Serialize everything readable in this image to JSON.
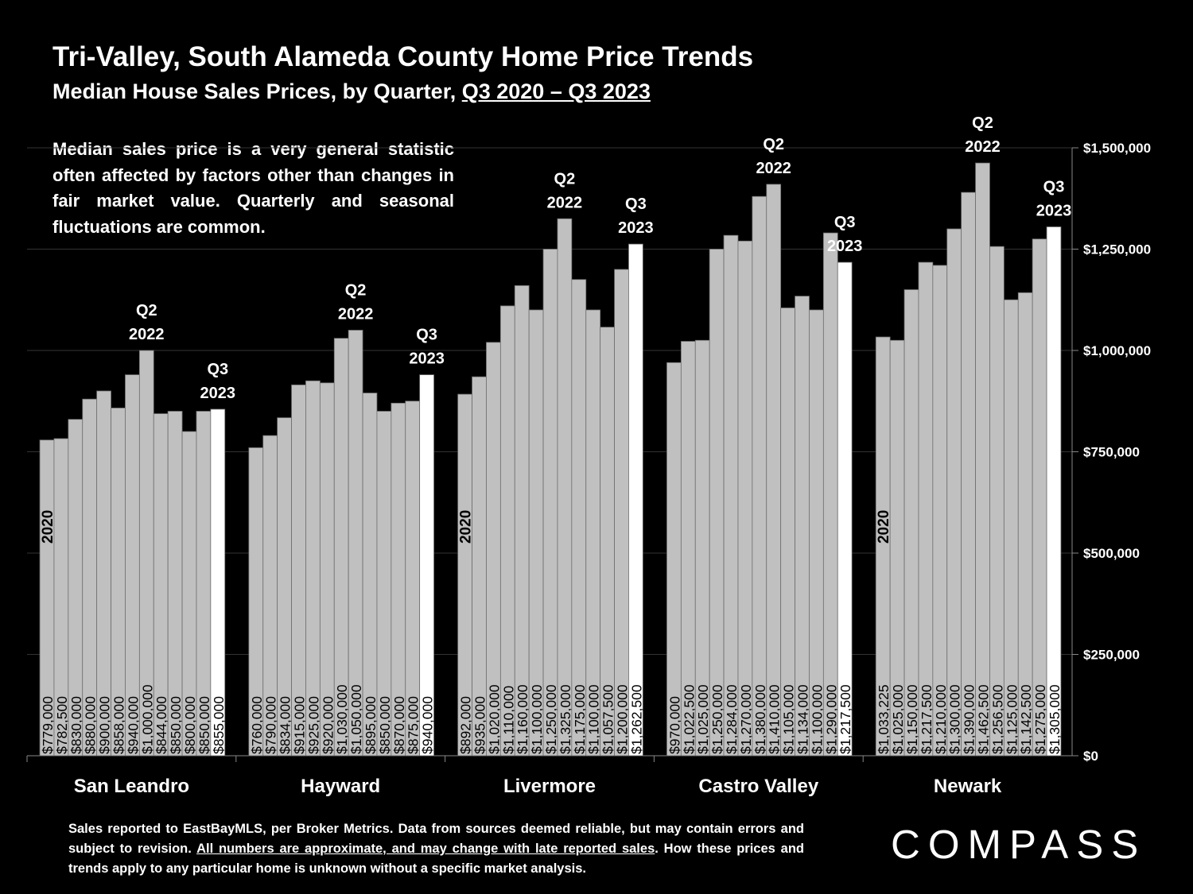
{
  "title": "Tri-Valley, South Alameda County Home Price Trends",
  "subtitle": {
    "prefix": "Median House Sales Prices, by Quarter,",
    "period": "Q3 2020 – Q3 2023"
  },
  "note": "Median sales price is a very general statistic often affected by factors other than changes in fair market value. Quarterly and seasonal fluctuations are common.",
  "footnote": {
    "part1": "Sales reported to EastBayMLS, per Broker Metrics. Data from sources deemed reliable, but may contain errors and subject to revision.",
    "part2": "All numbers are approximate, and may change with late reported sales",
    "part3": ". How these prices and trends apply to any particular home is unknown without a specific market analysis."
  },
  "logo_text": "COMPASS",
  "colors": {
    "background": "#000000",
    "bar": "#c0c0c0",
    "bar_latest": "#ffffff",
    "text": "#ffffff",
    "bar_label": "#000000"
  },
  "chart_data": {
    "type": "bar",
    "y_axis": {
      "ticks": [
        "$0",
        "$250,000",
        "$500,000",
        "$750,000",
        "$1,000,000",
        "$1,250,000",
        "$1,500,000"
      ],
      "range": [
        0,
        1500000
      ],
      "position": "right"
    },
    "grid": true,
    "groups": [
      {
        "name": "San Leandro",
        "values": [
          779000,
          782500,
          830000,
          880000,
          900000,
          858000,
          940000,
          1000000,
          844000,
          850000,
          800000,
          850000,
          855000
        ],
        "labels": [
          "$779,000",
          "$782,500",
          "$830,000",
          "$880,000",
          "$900,000",
          "$858,000",
          "$940,000",
          "$1,000,000",
          "$844,000",
          "$850,000",
          "$800,000",
          "$850,000",
          "$855,000"
        ],
        "year_label": "2020",
        "peak_label": [
          "Q2",
          "2022"
        ],
        "end_label": [
          "Q3",
          "2023"
        ]
      },
      {
        "name": "Hayward",
        "values": [
          760000,
          790000,
          834000,
          915000,
          925000,
          920000,
          1030000,
          1050000,
          895000,
          850000,
          870000,
          875000,
          940000
        ],
        "labels": [
          "$760,000",
          "$790,000",
          "$834,000",
          "$915,000",
          "$925,000",
          "$920,000",
          "$1,030,000",
          "$1,050,000",
          "$895,000",
          "$850,000",
          "$870,000",
          "$875,000",
          "$940,000"
        ],
        "year_label": "",
        "peak_label": [
          "Q2",
          "2022"
        ],
        "end_label": [
          "Q3",
          "2023"
        ]
      },
      {
        "name": "Livermore",
        "values": [
          892000,
          935000,
          1020000,
          1110000,
          1160000,
          1100000,
          1250000,
          1325000,
          1175000,
          1100000,
          1057500,
          1200000,
          1262500
        ],
        "labels": [
          "$892,000",
          "$935,000",
          "$1,020,000",
          "$1,110,000",
          "$1,160,000",
          "$1,100,000",
          "$1,250,000",
          "$1,325,000",
          "$1,175,000",
          "$1,100,000",
          "$1,057,500",
          "$1,200,000",
          "$1,262,500"
        ],
        "year_label": "2020",
        "peak_label": [
          "Q2",
          "2022"
        ],
        "end_label": [
          "Q3",
          "2023"
        ]
      },
      {
        "name": "Castro Valley",
        "values": [
          970000,
          1022500,
          1025000,
          1250000,
          1284000,
          1270000,
          1380000,
          1410000,
          1105000,
          1134000,
          1100000,
          1290000,
          1217500
        ],
        "labels": [
          "$970,000",
          "$1,022,500",
          "$1,025,000",
          "$1,250,000",
          "$1,284,000",
          "$1,270,000",
          "$1,380,000",
          "$1,410,000",
          "$1,105,000",
          "$1,134,000",
          "$1,100,000",
          "$1,290,000",
          "$1,217,500"
        ],
        "year_label": "",
        "peak_label": [
          "Q2",
          "2022"
        ],
        "end_label": [
          "Q3",
          "2023"
        ]
      },
      {
        "name": "Newark",
        "values": [
          1033225,
          1025000,
          1150000,
          1217500,
          1210000,
          1300000,
          1390000,
          1462500,
          1256500,
          1125000,
          1142500,
          1275000,
          1305000
        ],
        "labels": [
          "$1,033,225",
          "$1,025,000",
          "$1,150,000",
          "$1,217,500",
          "$1,210,000",
          "$1,300,000",
          "$1,390,000",
          "$1,462,500",
          "$1,256,500",
          "$1,125,000",
          "$1,142,500",
          "$1,275,000",
          "$1,305,000"
        ],
        "year_label": "2020",
        "peak_label": [
          "Q2",
          "2022"
        ],
        "end_label": [
          "Q3",
          "2023"
        ]
      }
    ]
  }
}
